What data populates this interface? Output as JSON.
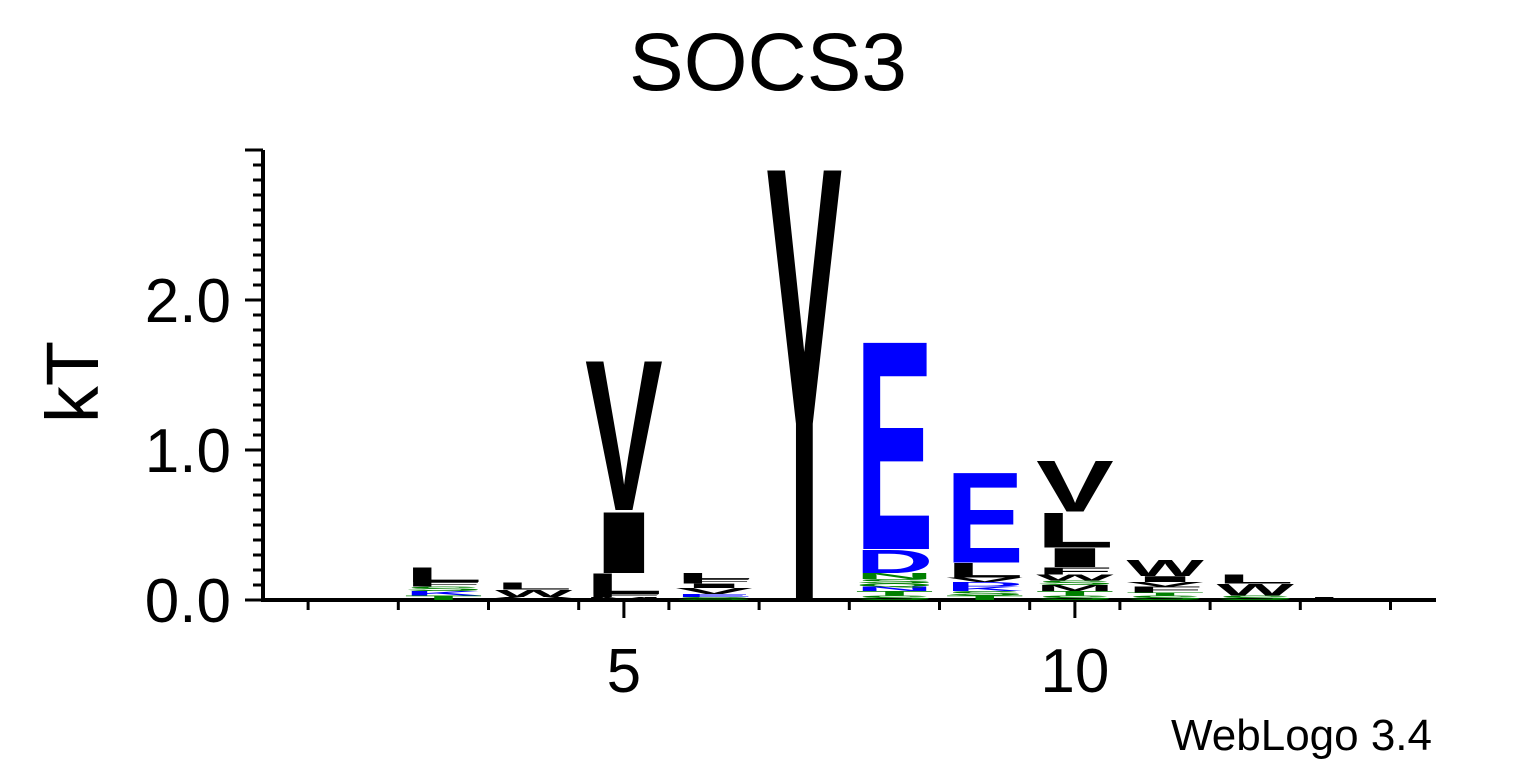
{
  "chart_data": {
    "type": "sequence-logo",
    "title": "SOCS3",
    "ylabel": "kT",
    "xlabel": "",
    "ylim": [
      0,
      3.0
    ],
    "xlim": [
      1,
      14
    ],
    "y_ticks": [
      {
        "value": 0.0,
        "label": "0.0"
      },
      {
        "value": 1.0,
        "label": "1.0"
      },
      {
        "value": 2.0,
        "label": "2.0"
      }
    ],
    "x_ticks": [
      {
        "value": 5,
        "label": "5"
      },
      {
        "value": 10,
        "label": "10"
      }
    ],
    "footer": "WebLogo 3.4",
    "colors": {
      "hydrophobic": "#000000",
      "acidic": "#0000ff",
      "polar": "#008000"
    },
    "positions": [
      {
        "pos": 3,
        "stack": [
          {
            "letter": "T",
            "color": "#008000",
            "height": 0.03
          },
          {
            "letter": "K",
            "color": "#0000ff",
            "height": 0.03
          },
          {
            "letter": "S",
            "color": "#008000",
            "height": 0.03
          },
          {
            "letter": "F",
            "color": "#000000",
            "height": 0.03
          },
          {
            "letter": "L",
            "color": "#000000",
            "height": 0.1
          }
        ]
      },
      {
        "pos": 4,
        "stack": [
          {
            "letter": "V",
            "color": "#000000",
            "height": 0.02
          },
          {
            "letter": "W",
            "color": "#000000",
            "height": 0.05
          },
          {
            "letter": "L",
            "color": "#000000",
            "height": 0.05
          }
        ]
      },
      {
        "pos": 5,
        "stack": [
          {
            "letter": "M",
            "color": "#000000",
            "height": 0.02
          },
          {
            "letter": "F",
            "color": "#000000",
            "height": 0.02
          },
          {
            "letter": "L",
            "color": "#000000",
            "height": 0.14
          },
          {
            "letter": "I",
            "color": "#000000",
            "height": 0.42
          },
          {
            "letter": "V",
            "color": "#000000",
            "height": 1.03
          }
        ]
      },
      {
        "pos": 6,
        "stack": [
          {
            "letter": "S",
            "color": "#008000",
            "height": 0.02
          },
          {
            "letter": "E",
            "color": "#0000ff",
            "height": 0.02
          },
          {
            "letter": "V",
            "color": "#000000",
            "height": 0.04
          },
          {
            "letter": "I",
            "color": "#000000",
            "height": 0.03
          },
          {
            "letter": "F",
            "color": "#000000",
            "height": 0.03
          },
          {
            "letter": "L",
            "color": "#000000",
            "height": 0.04
          }
        ]
      },
      {
        "pos": 7,
        "stack": [
          {
            "letter": "Y",
            "color": "#000000",
            "height": 2.98
          }
        ]
      },
      {
        "pos": 8,
        "stack": [
          {
            "letter": "S",
            "color": "#008000",
            "height": 0.03
          },
          {
            "letter": "T",
            "color": "#008000",
            "height": 0.03
          },
          {
            "letter": "N",
            "color": "#0000ff",
            "height": 0.03
          },
          {
            "letter": "Q",
            "color": "#008000",
            "height": 0.02
          },
          {
            "letter": "S",
            "color": "#008000",
            "height": 0.03
          },
          {
            "letter": "N",
            "color": "#008000",
            "height": 0.04
          },
          {
            "letter": "D",
            "color": "#0000ff",
            "height": 0.16
          },
          {
            "letter": "E",
            "color": "#0000ff",
            "height": 1.43
          }
        ]
      },
      {
        "pos": 9,
        "stack": [
          {
            "letter": "T",
            "color": "#008000",
            "height": 0.03
          },
          {
            "letter": "S",
            "color": "#008000",
            "height": 0.03
          },
          {
            "letter": "K",
            "color": "#0000ff",
            "height": 0.03
          },
          {
            "letter": "D",
            "color": "#0000ff",
            "height": 0.03
          },
          {
            "letter": "V",
            "color": "#000000",
            "height": 0.03
          },
          {
            "letter": "L",
            "color": "#000000",
            "height": 0.1
          },
          {
            "letter": "E",
            "color": "#0000ff",
            "height": 0.62
          }
        ]
      },
      {
        "pos": 10,
        "stack": [
          {
            "letter": "S",
            "color": "#008000",
            "height": 0.03
          },
          {
            "letter": "T",
            "color": "#008000",
            "height": 0.03
          },
          {
            "letter": "M",
            "color": "#000000",
            "height": 0.04
          },
          {
            "letter": "S",
            "color": "#008000",
            "height": 0.03
          },
          {
            "letter": "W",
            "color": "#000000",
            "height": 0.04
          },
          {
            "letter": "F",
            "color": "#000000",
            "height": 0.05
          },
          {
            "letter": "I",
            "color": "#000000",
            "height": 0.13
          },
          {
            "letter": "L",
            "color": "#000000",
            "height": 0.24
          },
          {
            "letter": "V",
            "color": "#000000",
            "height": 0.35
          }
        ]
      },
      {
        "pos": 11,
        "stack": [
          {
            "letter": "S",
            "color": "#008000",
            "height": 0.03
          },
          {
            "letter": "T",
            "color": "#008000",
            "height": 0.02
          },
          {
            "letter": "F",
            "color": "#000000",
            "height": 0.04
          },
          {
            "letter": "V",
            "color": "#000000",
            "height": 0.03
          },
          {
            "letter": "I",
            "color": "#000000",
            "height": 0.04
          },
          {
            "letter": "W",
            "color": "#000000",
            "height": 0.11
          }
        ]
      },
      {
        "pos": 12,
        "stack": [
          {
            "letter": "S",
            "color": "#008000",
            "height": 0.03
          },
          {
            "letter": "W",
            "color": "#000000",
            "height": 0.08
          },
          {
            "letter": "L",
            "color": "#000000",
            "height": 0.06
          }
        ]
      },
      {
        "pos": 13,
        "stack": [
          {
            "letter": "L",
            "color": "#000000",
            "height": 0.02
          }
        ]
      }
    ]
  }
}
